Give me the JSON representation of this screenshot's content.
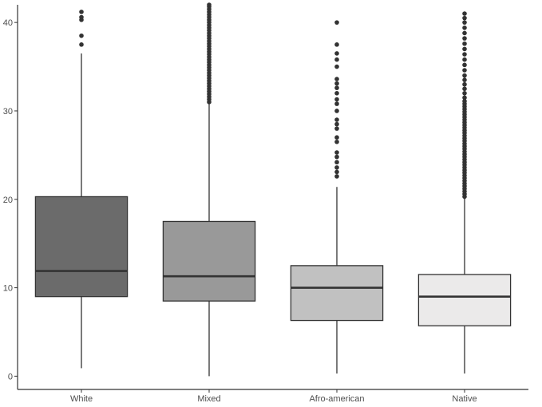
{
  "chart_data": {
    "type": "boxplot",
    "title": "",
    "xlabel": "",
    "ylabel": "",
    "ylim": [
      -1.5,
      42
    ],
    "yticks": [
      0,
      10,
      20,
      30,
      40
    ],
    "grid": false,
    "legend": "none",
    "categories": [
      "White",
      "Mixed",
      "Afro-american",
      "Native"
    ],
    "series": [
      {
        "category": "White",
        "fill": "#6b6b6b",
        "whisker_low": 0.9,
        "q1": 9.0,
        "median": 11.9,
        "q3": 20.3,
        "whisker_high": 36.5,
        "outliers": [
          37.5,
          38.5,
          40.3,
          40.6,
          41.2
        ]
      },
      {
        "category": "Mixed",
        "fill": "#999999",
        "whisker_low": 0.0,
        "q1": 8.5,
        "median": 11.3,
        "q3": 17.5,
        "whisker_high": 30.9,
        "outliers": [
          31.0,
          31.3,
          31.6,
          31.9,
          32.2,
          32.5,
          32.8,
          33.1,
          33.4,
          33.7,
          34.0,
          34.3,
          34.6,
          34.9,
          35.2,
          35.5,
          35.8,
          36.1,
          36.4,
          36.7,
          37.0,
          37.3,
          37.6,
          37.9,
          38.2,
          38.5,
          38.8,
          39.1,
          39.4,
          39.7,
          40.0,
          40.3,
          40.6,
          40.9,
          41.2,
          41.5,
          41.8,
          42.0
        ]
      },
      {
        "category": "Afro-american",
        "fill": "#c1c1c1",
        "whisker_low": 0.3,
        "q1": 6.3,
        "median": 10.0,
        "q3": 12.5,
        "whisker_high": 21.4,
        "outliers": [
          22.6,
          23.1,
          23.6,
          24.2,
          24.8,
          25.3,
          26.5,
          27.0,
          28.0,
          28.5,
          29.0,
          30.0,
          30.8,
          31.3,
          32.0,
          32.6,
          33.1,
          33.6,
          35.0,
          35.8,
          36.5,
          37.5,
          40.0
        ]
      },
      {
        "category": "Native",
        "fill": "#ebeaea",
        "whisker_low": 0.3,
        "q1": 5.7,
        "median": 9.0,
        "q3": 11.5,
        "whisker_high": 20.1,
        "outliers": [
          20.3,
          20.6,
          20.9,
          21.2,
          21.5,
          21.8,
          22.1,
          22.4,
          22.7,
          23.0,
          23.3,
          23.6,
          23.9,
          24.2,
          24.5,
          24.8,
          25.1,
          25.4,
          25.7,
          26.0,
          26.3,
          26.6,
          26.9,
          27.2,
          27.5,
          27.8,
          28.1,
          28.4,
          28.7,
          29.0,
          29.3,
          29.6,
          29.9,
          30.2,
          30.5,
          30.8,
          31.1,
          31.5,
          32.0,
          32.5,
          33.0,
          33.5,
          34.0,
          34.6,
          35.2,
          35.8,
          36.4,
          37.0,
          37.6,
          38.2,
          38.8,
          39.4,
          40.0,
          40.5,
          41.0
        ]
      }
    ]
  }
}
